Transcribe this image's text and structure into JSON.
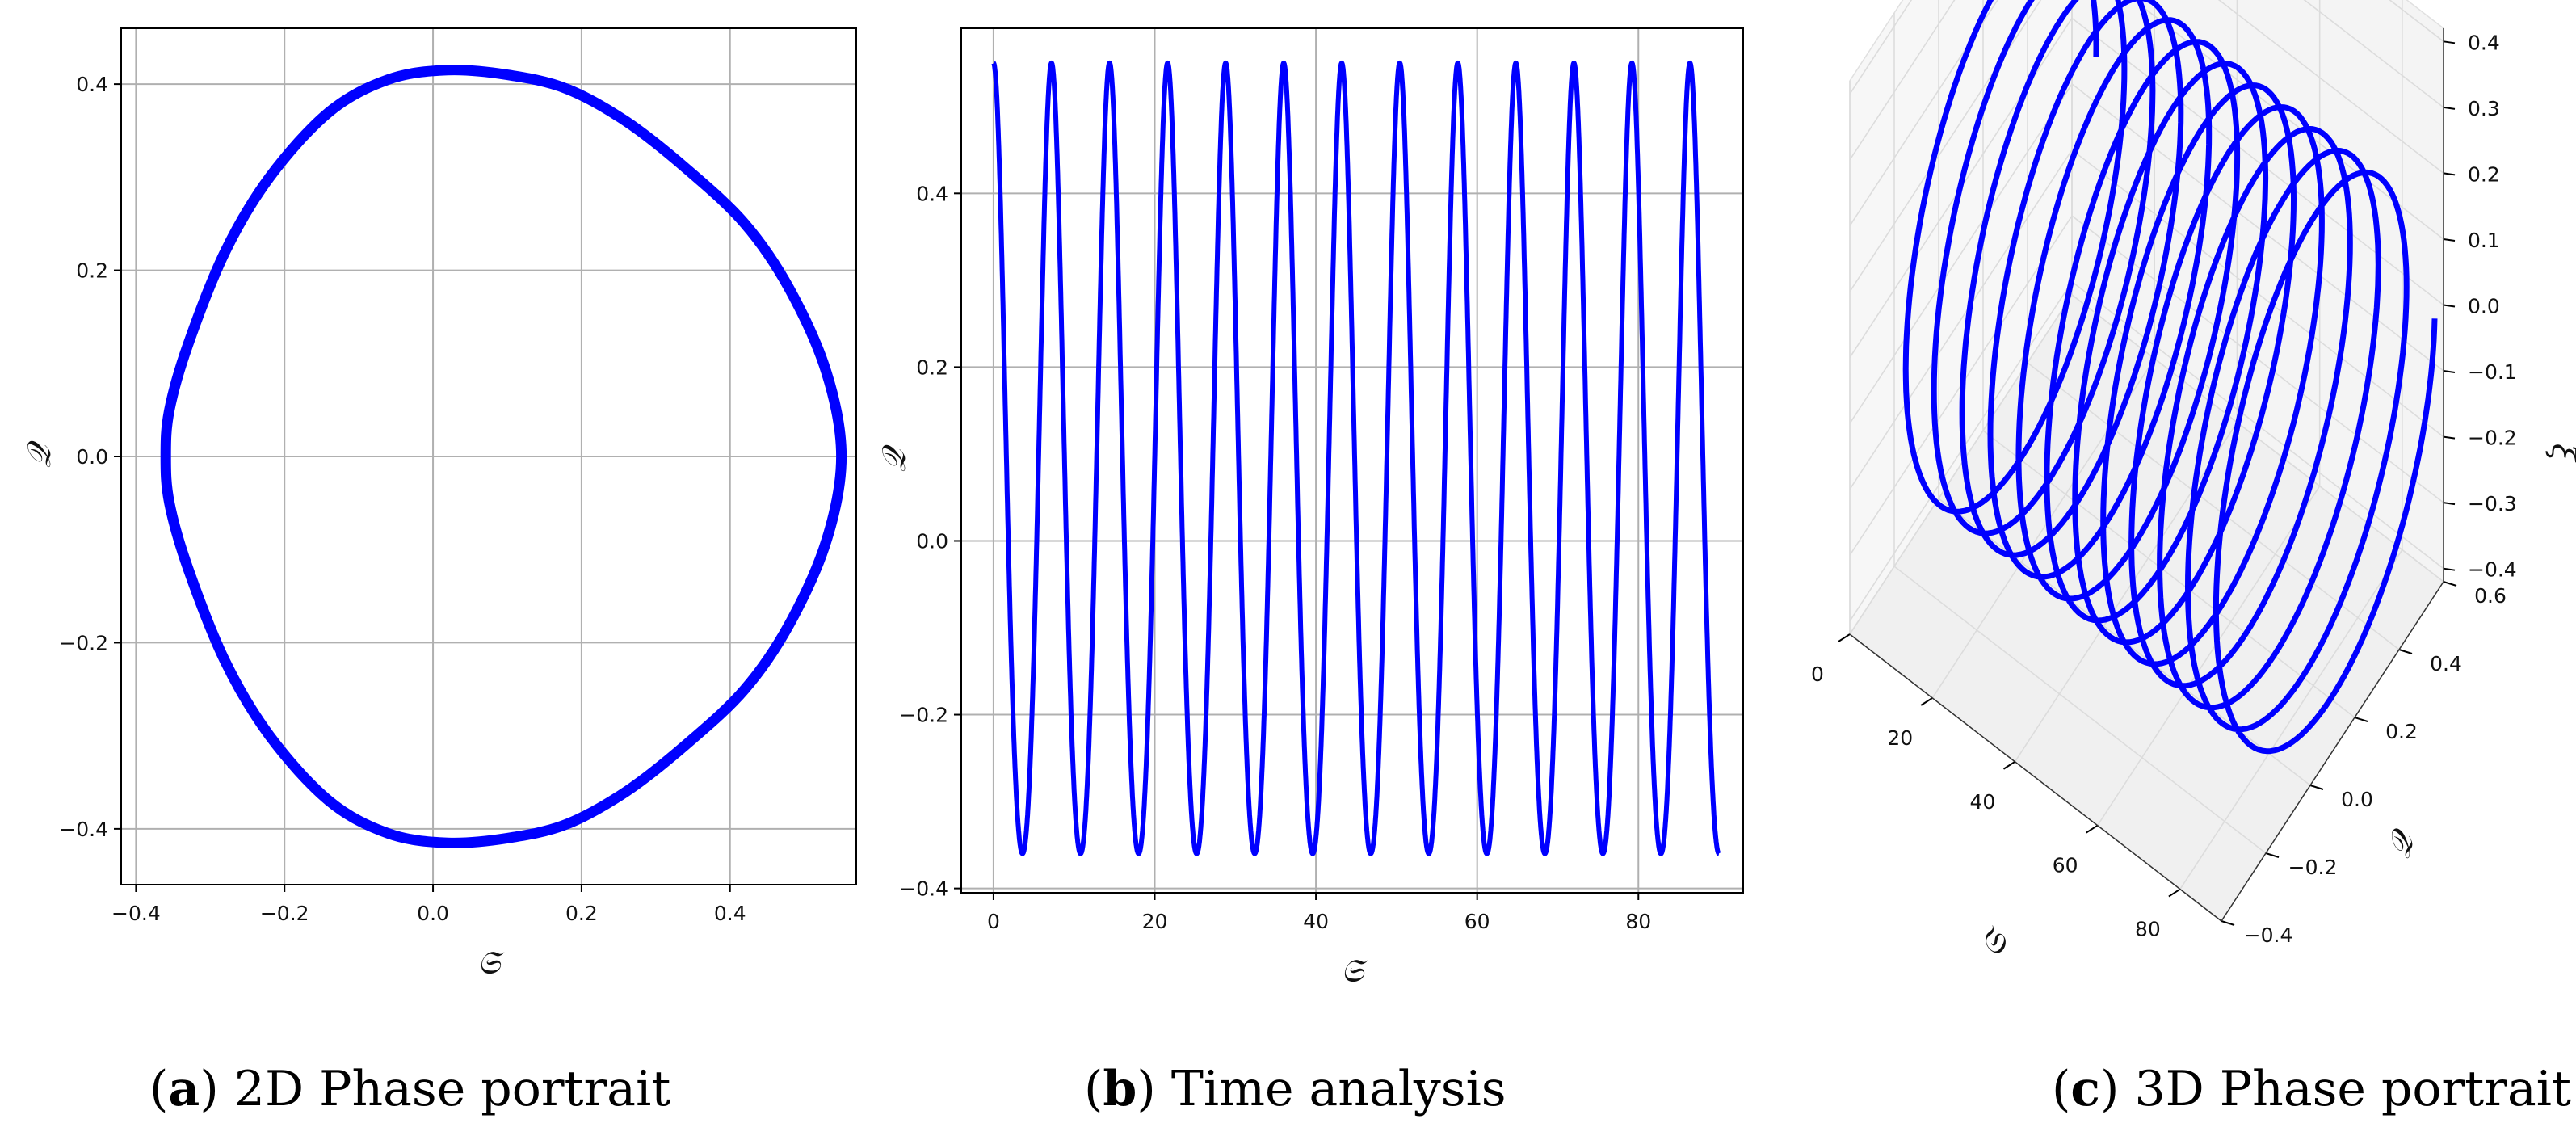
{
  "colors": {
    "curve": "#0000ff",
    "grid": "#b0b0b0",
    "text": "#111111"
  },
  "chart_data": [
    {
      "type": "line",
      "panel": "a",
      "caption_letter": "a",
      "caption_text": ") 2D Phase portrait",
      "title": "",
      "xlabel": "𝔖",
      "ylabel": "𝒬",
      "xlim": [
        -0.42,
        0.57
      ],
      "ylim": [
        -0.46,
        0.46
      ],
      "xticks": [
        -0.4,
        -0.2,
        0.0,
        0.2,
        0.4
      ],
      "xtick_labels": [
        "−0.4",
        "−0.2",
        "0.0",
        "0.2",
        "0.4"
      ],
      "yticks": [
        -0.4,
        -0.2,
        0.0,
        0.2,
        0.4
      ],
      "ytick_labels": [
        "−0.4",
        "−0.2",
        "0.0",
        "0.2",
        "0.4"
      ],
      "grid": true,
      "series": [
        {
          "x": [
            0.55,
            0.53,
            0.48,
            0.42,
            0.34,
            0.26,
            0.18,
            0.1,
            0.02,
            -0.06,
            -0.14,
            -0.22,
            -0.28,
            -0.33,
            -0.355,
            -0.36,
            -0.355,
            -0.33,
            -0.28,
            -0.22,
            -0.14,
            -0.06,
            0.02,
            0.1,
            0.18,
            0.26,
            0.34,
            0.42,
            0.48,
            0.53,
            0.55
          ],
          "y": [
            0.0,
            0.09,
            0.18,
            0.25,
            0.31,
            0.36,
            0.395,
            0.41,
            0.415,
            0.405,
            0.37,
            0.3,
            0.22,
            0.12,
            0.05,
            0.0,
            -0.05,
            -0.12,
            -0.22,
            -0.3,
            -0.37,
            -0.405,
            -0.415,
            -0.41,
            -0.395,
            -0.36,
            -0.31,
            -0.25,
            -0.18,
            -0.09,
            0.0
          ]
        }
      ]
    },
    {
      "type": "line",
      "panel": "b",
      "caption_letter": "b",
      "caption_text": ") Time analysis",
      "title": "",
      "xlabel": "𝔖",
      "ylabel": "𝒬",
      "xlim": [
        -4,
        93
      ],
      "ylim": [
        -0.405,
        0.59
      ],
      "xticks": [
        0,
        20,
        40,
        60,
        80
      ],
      "xtick_labels": [
        "0",
        "20",
        "40",
        "60",
        "80"
      ],
      "yticks": [
        -0.4,
        -0.2,
        0.0,
        0.2,
        0.4
      ],
      "ytick_labels": [
        "−0.4",
        "−0.2",
        "0.0",
        "0.2",
        "0.4"
      ],
      "grid": true,
      "t_range": [
        0,
        90
      ],
      "period": 7.2,
      "peak": 0.55,
      "trough": -0.36
    },
    {
      "type": "line",
      "panel": "c",
      "caption_letter": "c",
      "caption_text": ") 3D Phase portrait",
      "title": "",
      "xlabel": "𝔖",
      "ylabel": "𝒬",
      "zlabel": "ξ",
      "xlim": [
        0,
        90
      ],
      "ylim": [
        -0.4,
        0.6
      ],
      "zlim": [
        -0.42,
        0.42
      ],
      "xtick_labels": [
        "0",
        "20",
        "40",
        "60",
        "80"
      ],
      "ytick_labels": [
        "−0.4",
        "−0.2",
        "0.0",
        "0.2",
        "0.4",
        "0.6"
      ],
      "ztick_labels": [
        "−0.4",
        "−0.3",
        "−0.2",
        "−0.1",
        "0.0",
        "0.1",
        "0.2",
        "0.3",
        "0.4"
      ],
      "grid": true,
      "loops": 12
    }
  ]
}
